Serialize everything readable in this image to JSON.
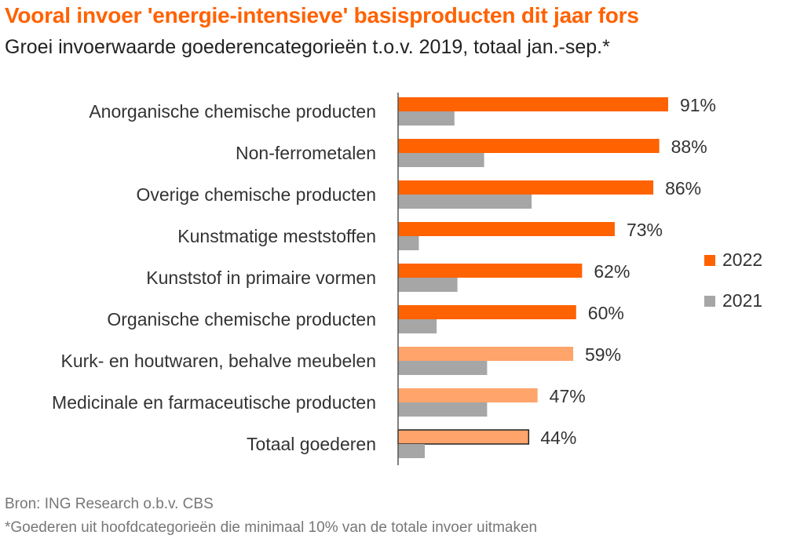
{
  "title": "Vooral invoer 'energie-intensieve' basisproducten dit jaar fors",
  "subtitle": "Groei invoerwaarde goederencategorieën t.o.v. 2019, totaal jan.-sep.*",
  "source": "Bron: ING Research o.b.v. CBS",
  "footnote": "*Goederen uit hoofdcategorieën die minimaal 10% van de totale invoer uitmaken",
  "colors": {
    "2022": "#ff6200",
    "2022_light": "#ffa46b",
    "2021": "#a6a6a6",
    "axis": "#555555",
    "title": "#ff6200"
  },
  "chart_data": {
    "type": "bar",
    "orientation": "horizontal",
    "categories": [
      "Anorganische chemische producten",
      "Non-ferrometalen",
      "Overige chemische producten",
      "Kunstmatige meststoffen",
      "Kunststof in primaire vormen",
      "Organische chemische producten",
      "Kurk- en houtwaren, behalve meubelen",
      "Medicinale en farmaceutische producten",
      "Totaal goederen"
    ],
    "series": [
      {
        "name": "2022",
        "values": [
          91,
          88,
          86,
          73,
          62,
          60,
          59,
          47,
          44
        ],
        "labels": [
          "91%",
          "88%",
          "86%",
          "73%",
          "62%",
          "60%",
          "59%",
          "47%",
          "44%"
        ],
        "highlight": [
          "dark",
          "dark",
          "dark",
          "dark",
          "dark",
          "dark",
          "light",
          "light",
          "light-outlined"
        ]
      },
      {
        "name": "2021",
        "values": [
          19,
          29,
          45,
          7,
          20,
          13,
          30,
          30,
          9
        ]
      }
    ],
    "xlim": [
      0,
      100
    ],
    "legend": {
      "position": "right",
      "entries": [
        "2022",
        "2021"
      ]
    },
    "grid": false
  }
}
